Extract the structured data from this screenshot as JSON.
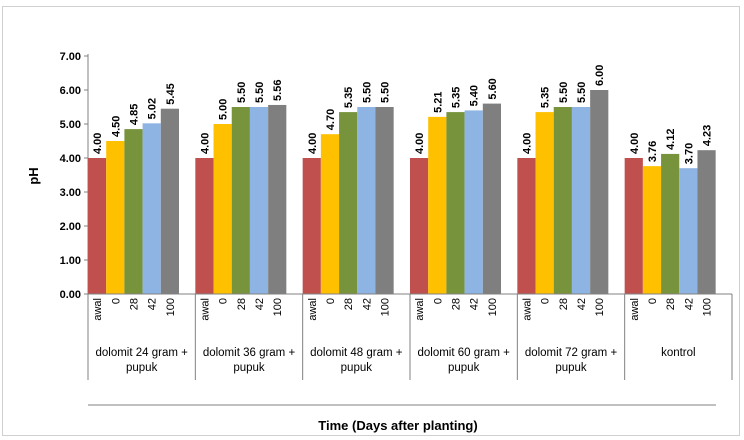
{
  "chart_data": {
    "type": "bar",
    "xlabel": "Time (Days after planting)",
    "ylabel": "pH",
    "ylim": [
      0,
      7
    ],
    "yticks": [
      "0.00",
      "1.00",
      "2.00",
      "3.00",
      "4.00",
      "5.00",
      "6.00",
      "7.00"
    ],
    "grid": false,
    "colors": [
      "#c0504d",
      "#ffc000",
      "#77933c",
      "#8db4e2",
      "#7f7f7f"
    ],
    "categories": [
      "awal",
      "0",
      "28",
      "42",
      "100"
    ],
    "groups": [
      {
        "label_lines": [
          "dolomit 24 gram +",
          "pupuk"
        ],
        "values": [
          4.0,
          4.5,
          4.85,
          5.02,
          5.45
        ],
        "labels": [
          "4.00",
          "4.50",
          "4.85",
          "5.02",
          "5.45"
        ]
      },
      {
        "label_lines": [
          "dolomit 36 gram +",
          "pupuk"
        ],
        "values": [
          4.0,
          5.0,
          5.5,
          5.5,
          5.56
        ],
        "labels": [
          "4.00",
          "5.00",
          "5.50",
          "5.50",
          "5.56"
        ]
      },
      {
        "label_lines": [
          "dolomit 48 gram +",
          "pupuk"
        ],
        "values": [
          4.0,
          4.7,
          5.35,
          5.5,
          5.5
        ],
        "labels": [
          "4.00",
          "4.70",
          "5.35",
          "5.50",
          "5.50"
        ]
      },
      {
        "label_lines": [
          "dolomit 60 gram +",
          "pupuk"
        ],
        "values": [
          4.0,
          5.21,
          5.35,
          5.4,
          5.6
        ],
        "labels": [
          "4.00",
          "5.21",
          "5.35",
          "5.40",
          "5.60"
        ]
      },
      {
        "label_lines": [
          "dolomit 72 gram +",
          "pupuk"
        ],
        "values": [
          4.0,
          5.35,
          5.5,
          5.5,
          6.0
        ],
        "labels": [
          "4.00",
          "5.35",
          "5.50",
          "5.50",
          "6.00"
        ]
      },
      {
        "label_lines": [
          "kontrol"
        ],
        "values": [
          4.0,
          3.76,
          4.12,
          3.7,
          4.23
        ],
        "labels": [
          "4.00",
          "3.76",
          "4.12",
          "3.70",
          "4.23"
        ]
      }
    ]
  }
}
